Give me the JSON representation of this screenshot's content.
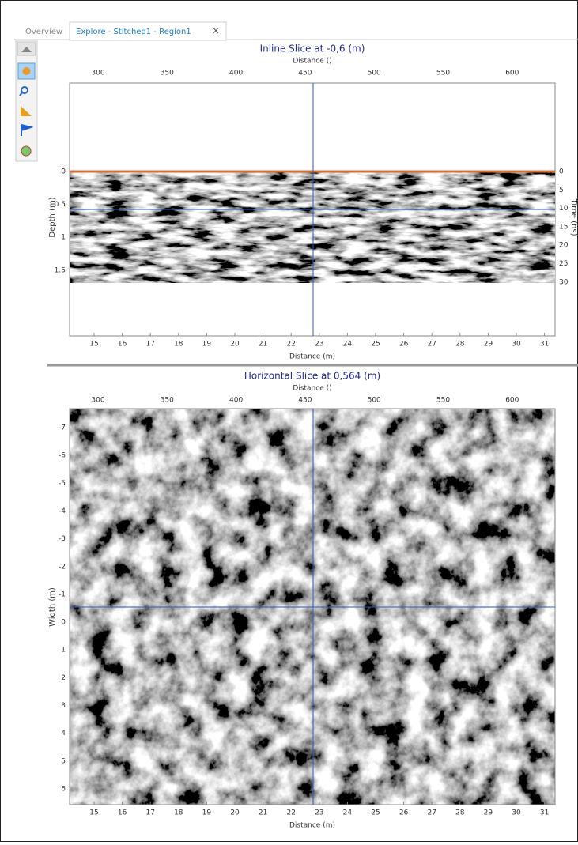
{
  "tabs": [
    {
      "label": "Overview"
    },
    {
      "label": "Explore - Stitched1 - Region1"
    }
  ],
  "inline": {
    "title": "Inline Slice at -0,6 (m)",
    "top_axis_label": "Distance ()",
    "top_ticks": [
      "300",
      "350",
      "400",
      "450",
      "500",
      "550",
      "600"
    ],
    "left_axis_label": "Depth (m)",
    "left_ticks": [
      "0",
      "0.5",
      "1",
      "1.5"
    ],
    "right_axis_label": "Time (ns)",
    "right_ticks": [
      "0",
      "5",
      "10",
      "15",
      "20",
      "25",
      "30"
    ],
    "bottom_ticks": [
      "15",
      "16",
      "17",
      "18",
      "19",
      "20",
      "21",
      "22",
      "23",
      "24",
      "25",
      "26",
      "27",
      "28",
      "29",
      "30",
      "31"
    ],
    "bottom_axis_label": "Distance (m)"
  },
  "horizontal": {
    "title": "Horizontal Slice at 0,564 (m)",
    "top_axis_label": "Distance ()",
    "top_ticks": [
      "300",
      "350",
      "400",
      "450",
      "500",
      "550",
      "600"
    ],
    "left_axis_label": "Width (m)",
    "left_ticks": [
      "-7",
      "-6",
      "-5",
      "-4",
      "-3",
      "-2",
      "-1",
      "0",
      "1",
      "2",
      "3",
      "4",
      "5",
      "6"
    ],
    "bottom_ticks": [
      "15",
      "16",
      "17",
      "18",
      "19",
      "20",
      "21",
      "22",
      "23",
      "24",
      "25",
      "26",
      "27",
      "28",
      "29",
      "30",
      "31"
    ],
    "bottom_axis_label": "Distance (m)"
  }
}
